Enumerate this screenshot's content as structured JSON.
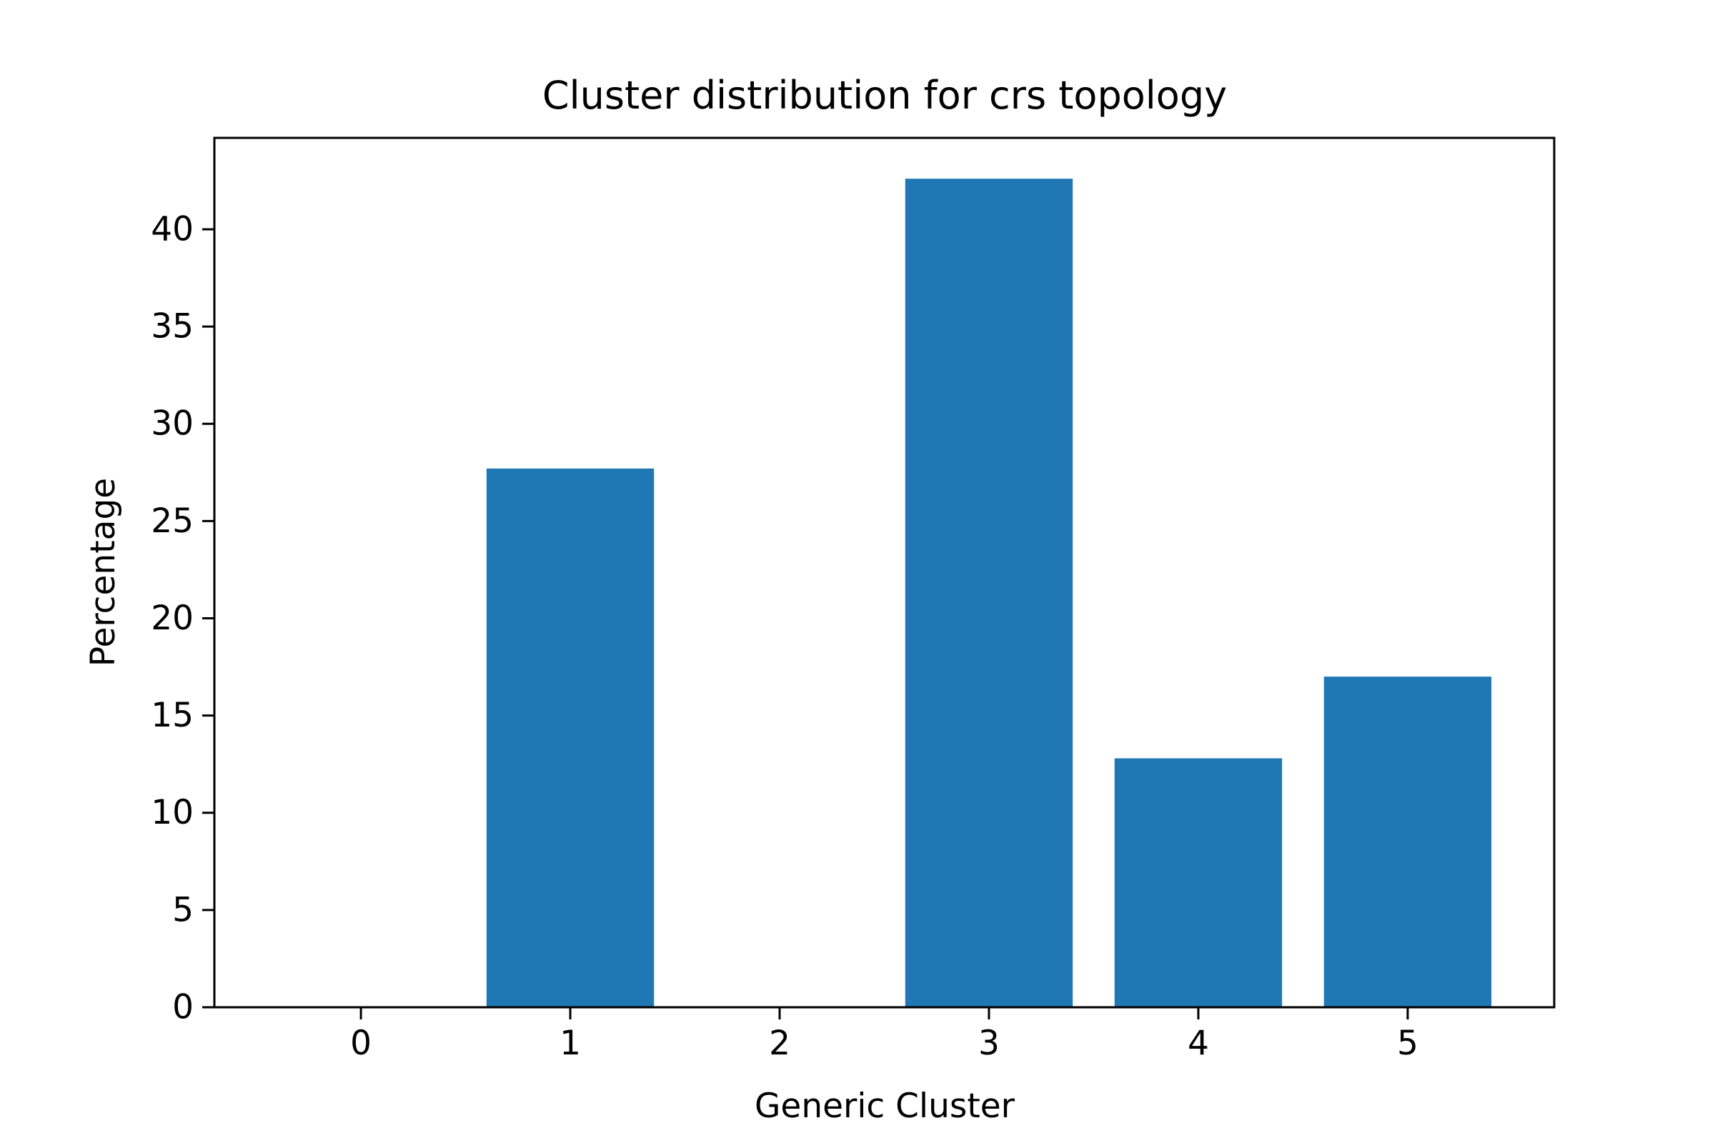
{
  "chart_data": {
    "type": "bar",
    "title": "Cluster distribution for crs topology",
    "xlabel": "Generic Cluster",
    "ylabel": "Percentage",
    "categories": [
      "0",
      "1",
      "2",
      "3",
      "4",
      "5"
    ],
    "values": [
      0,
      27.7,
      0,
      42.6,
      12.8,
      17.0
    ],
    "ylim": [
      0,
      44.7
    ],
    "xlim": [
      -0.7,
      5.7
    ],
    "yticks": [
      0,
      5,
      10,
      15,
      20,
      25,
      30,
      35,
      40
    ],
    "bar_color": "#1f77b4",
    "grid": false,
    "legend": "none"
  }
}
